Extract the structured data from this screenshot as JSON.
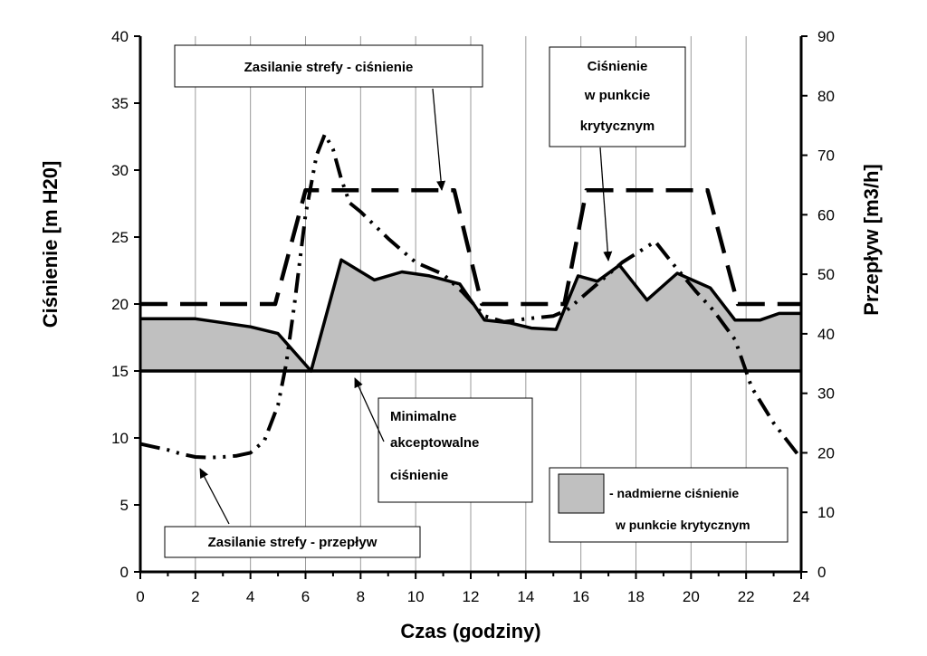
{
  "chart_data": {
    "type": "line",
    "x_axis": {
      "label": "Czas (godziny)",
      "range": [
        0,
        24
      ],
      "ticks": [
        0,
        2,
        4,
        6,
        8,
        10,
        12,
        14,
        16,
        18,
        20,
        22,
        24
      ]
    },
    "y_left": {
      "label": "Ciśnienie [m H20]",
      "range": [
        0,
        40
      ],
      "ticks": [
        0,
        5,
        10,
        15,
        20,
        25,
        30,
        35,
        40
      ]
    },
    "y_right": {
      "label": "Przepływ [m3/h]",
      "range": [
        0,
        90
      ],
      "ticks": [
        0,
        10,
        20,
        30,
        40,
        50,
        60,
        70,
        80,
        90
      ]
    },
    "grid": "vertical",
    "series": [
      {
        "name": "Zasilanie strefy - ciśnienie",
        "axis": "left",
        "style": "long-dash",
        "x": [
          0,
          4.9,
          6.0,
          11.4,
          12.4,
          15.4,
          16.2,
          20.6,
          21.7,
          24
        ],
        "y": [
          20,
          20,
          28.5,
          28.5,
          20,
          20,
          28.5,
          28.5,
          20,
          20
        ]
      },
      {
        "name": "Ciśnienie w punkcie krytycznym",
        "axis": "left",
        "style": "solid",
        "x": [
          0,
          1,
          2,
          3,
          4,
          5,
          6.2,
          7.3,
          8.5,
          9.5,
          10.5,
          11.6,
          12.5,
          13.4,
          14.2,
          15.1,
          15.9,
          16.6,
          17.4,
          18.4,
          19.5,
          20.7,
          21.6,
          22.5,
          23.2,
          24
        ],
        "y": [
          18.9,
          18.9,
          18.9,
          18.6,
          18.3,
          17.8,
          15,
          23.3,
          21.8,
          22.4,
          22.1,
          21.5,
          18.8,
          18.6,
          18.2,
          18.1,
          22.1,
          21.7,
          22.9,
          20.3,
          22.3,
          21.2,
          18.8,
          18.8,
          19.3,
          19.3
        ]
      },
      {
        "name": "Zasilanie strefy - przepływ",
        "axis": "right",
        "style": "dash-dot-dot",
        "x": [
          0,
          0.5,
          1,
          1.5,
          2,
          2.5,
          3,
          3.5,
          4,
          4.5,
          5,
          5.3,
          5.6,
          6,
          6.4,
          6.7,
          7.0,
          7.3,
          7.6,
          8.0,
          9.0,
          10,
          11,
          11.7,
          12.5,
          13.2,
          14,
          15,
          15.5,
          16.5,
          17.5,
          18.7,
          19.3,
          20.2,
          20.8,
          21.6,
          22.2,
          23,
          24
        ],
        "y": [
          21.5,
          21,
          20.5,
          19.8,
          19.3,
          19.2,
          19.3,
          19.5,
          20,
          22,
          28,
          35,
          45,
          60,
          70,
          73.5,
          71,
          66,
          62,
          60.5,
          56,
          52,
          50,
          47,
          43,
          42,
          42.5,
          43,
          44,
          48,
          52,
          55.5,
          52,
          47,
          44,
          39,
          31,
          25,
          19
        ]
      },
      {
        "name": "Minimalne akceptowalne ciśnienie",
        "axis": "left",
        "style": "solid-thick",
        "x": [
          0,
          24
        ],
        "y": [
          15,
          15
        ]
      }
    ],
    "shaded_area": {
      "between": [
        "Ciśnienie w punkcie krytycznym",
        "Minimalne akceptowalne ciśnienie"
      ],
      "color": "#c0c0c0"
    },
    "annotations": {
      "supply_pressure": "Zasilanie strefy - ciśnienie",
      "critical_pressure": [
        "Ciśnienie",
        "w punkcie",
        "krytycznym"
      ],
      "min_pressure": [
        "Minimalne",
        "akceptowalne",
        "ciśnienie"
      ],
      "supply_flow": "Zasilanie strefy - przepływ"
    },
    "legend": {
      "line1": "- nadmierne ciśnienie",
      "line2": "w punkcie krytycznym",
      "swatch_color": "#c0c0c0",
      "placement": "bottom-right"
    }
  }
}
